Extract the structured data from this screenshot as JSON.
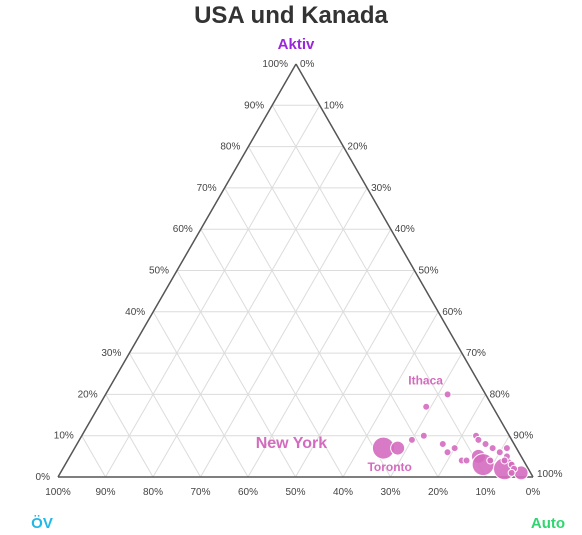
{
  "chart_data": {
    "type": "scatter",
    "subtype": "ternary",
    "title": "USA und Kanada",
    "axes": {
      "top": {
        "label": "Aktiv",
        "color": "#9b25d9"
      },
      "left": {
        "label": "ÖV",
        "color": "#22b8e6"
      },
      "right": {
        "label": "Auto",
        "color": "#2fd670"
      }
    },
    "ticks": [
      "0%",
      "10%",
      "20%",
      "30%",
      "40%",
      "50%",
      "60%",
      "70%",
      "80%",
      "90%",
      "100%"
    ],
    "grid": true,
    "point_color": "#d46bbf",
    "points": [
      {
        "label": "New York",
        "aktiv": 7,
        "oev": 28,
        "auto": 65,
        "size": "large"
      },
      {
        "label": "Toronto",
        "aktiv": 7,
        "oev": 25,
        "auto": 68,
        "size": "medium"
      },
      {
        "label": "Ithaca",
        "aktiv": 20,
        "oev": 8,
        "auto": 72,
        "size": "small"
      },
      {
        "label": "",
        "aktiv": 17,
        "oev": 14,
        "auto": 69,
        "size": "small"
      },
      {
        "label": "",
        "aktiv": 9,
        "oev": 21,
        "auto": 70,
        "size": "small"
      },
      {
        "label": "",
        "aktiv": 10,
        "oev": 18,
        "auto": 72,
        "size": "small"
      },
      {
        "label": "",
        "aktiv": 8,
        "oev": 15,
        "auto": 77,
        "size": "small"
      },
      {
        "label": "",
        "aktiv": 7,
        "oev": 13,
        "auto": 80,
        "size": "small"
      },
      {
        "label": "",
        "aktiv": 6,
        "oev": 15,
        "auto": 79,
        "size": "small"
      },
      {
        "label": "",
        "aktiv": 4,
        "oev": 13,
        "auto": 83,
        "size": "small"
      },
      {
        "label": "",
        "aktiv": 4,
        "oev": 12,
        "auto": 84,
        "size": "small"
      },
      {
        "label": "",
        "aktiv": 5,
        "oev": 9,
        "auto": 86,
        "size": "medium"
      },
      {
        "label": "",
        "aktiv": 3,
        "oev": 9,
        "auto": 88,
        "size": "large"
      },
      {
        "label": "",
        "aktiv": 4,
        "oev": 7,
        "auto": 89,
        "size": "small"
      },
      {
        "label": "",
        "aktiv": 2,
        "oev": 5,
        "auto": 93,
        "size": "large"
      },
      {
        "label": "",
        "aktiv": 1,
        "oev": 2,
        "auto": 97,
        "size": "medium"
      },
      {
        "label": "",
        "aktiv": 10,
        "oev": 7,
        "auto": 83,
        "size": "small"
      },
      {
        "label": "",
        "aktiv": 9,
        "oev": 7,
        "auto": 84,
        "size": "small"
      },
      {
        "label": "",
        "aktiv": 8,
        "oev": 6,
        "auto": 86,
        "size": "small"
      },
      {
        "label": "",
        "aktiv": 7,
        "oev": 5,
        "auto": 88,
        "size": "small"
      },
      {
        "label": "",
        "aktiv": 6,
        "oev": 4,
        "auto": 90,
        "size": "small"
      },
      {
        "label": "",
        "aktiv": 5,
        "oev": 3,
        "auto": 92,
        "size": "small"
      },
      {
        "label": "",
        "aktiv": 4,
        "oev": 4,
        "auto": 92,
        "size": "small"
      },
      {
        "label": "",
        "aktiv": 3,
        "oev": 3,
        "auto": 94,
        "size": "small"
      },
      {
        "label": "",
        "aktiv": 7,
        "oev": 2,
        "auto": 91,
        "size": "small"
      },
      {
        "label": "",
        "aktiv": 2,
        "oev": 3,
        "auto": 95,
        "size": "small"
      },
      {
        "label": "",
        "aktiv": 1,
        "oev": 4,
        "auto": 95,
        "size": "small"
      }
    ]
  }
}
